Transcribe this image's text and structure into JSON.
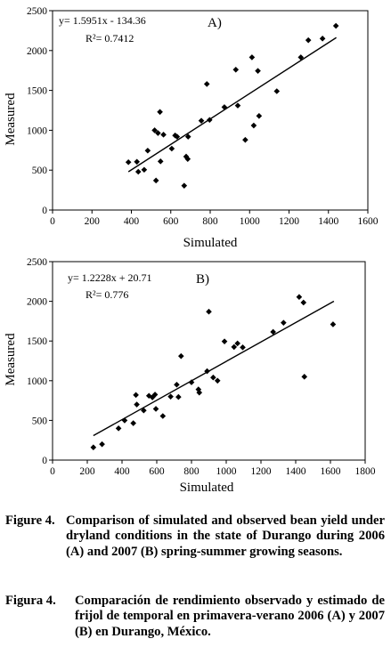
{
  "chart_data": [
    {
      "type": "scatter",
      "panel_label": "A)",
      "xlabel": "Simulated",
      "ylabel": "Measured",
      "xlim": [
        0,
        1600
      ],
      "ylim": [
        0,
        2500
      ],
      "x_ticks": [
        0,
        200,
        400,
        600,
        800,
        1000,
        1200,
        1400,
        1600
      ],
      "y_ticks": [
        0,
        500,
        1000,
        1500,
        2000,
        2500
      ],
      "x_tick_labels": [
        "0",
        "200",
        "400",
        "600",
        "800",
        "1000",
        "1200",
        "1400",
        "1600"
      ],
      "y_tick_labels": [
        "0",
        "500",
        "1000",
        "1500",
        "2000",
        "2500"
      ],
      "equation": "y= 1.5951x - 134.36",
      "r_squared": "R²= 0.7412",
      "trendline": {
        "slope": 1.5951,
        "intercept": -134.36,
        "x_range": [
          385,
          1440
        ]
      },
      "points": [
        {
          "x": 385,
          "y": 600
        },
        {
          "x": 428,
          "y": 605
        },
        {
          "x": 435,
          "y": 480
        },
        {
          "x": 465,
          "y": 505
        },
        {
          "x": 483,
          "y": 745
        },
        {
          "x": 518,
          "y": 1000
        },
        {
          "x": 525,
          "y": 370
        },
        {
          "x": 535,
          "y": 965
        },
        {
          "x": 545,
          "y": 1230
        },
        {
          "x": 548,
          "y": 610
        },
        {
          "x": 563,
          "y": 945
        },
        {
          "x": 605,
          "y": 770
        },
        {
          "x": 622,
          "y": 935
        },
        {
          "x": 632,
          "y": 920
        },
        {
          "x": 668,
          "y": 305
        },
        {
          "x": 678,
          "y": 670
        },
        {
          "x": 686,
          "y": 640
        },
        {
          "x": 688,
          "y": 920
        },
        {
          "x": 755,
          "y": 1120
        },
        {
          "x": 783,
          "y": 1580
        },
        {
          "x": 797,
          "y": 1130
        },
        {
          "x": 872,
          "y": 1290
        },
        {
          "x": 930,
          "y": 1760
        },
        {
          "x": 940,
          "y": 1310
        },
        {
          "x": 978,
          "y": 880
        },
        {
          "x": 1012,
          "y": 1915
        },
        {
          "x": 1021,
          "y": 1060
        },
        {
          "x": 1042,
          "y": 1745
        },
        {
          "x": 1048,
          "y": 1180
        },
        {
          "x": 1138,
          "y": 1490
        },
        {
          "x": 1260,
          "y": 1915
        },
        {
          "x": 1298,
          "y": 2130
        },
        {
          "x": 1370,
          "y": 2150
        },
        {
          "x": 1438,
          "y": 2310
        }
      ]
    },
    {
      "type": "scatter",
      "panel_label": "B)",
      "xlabel": "Simulated",
      "ylabel": "Measured",
      "xlim": [
        0,
        1800
      ],
      "ylim": [
        0,
        2500
      ],
      "x_ticks": [
        0,
        200,
        400,
        600,
        800,
        1000,
        1200,
        1400,
        1600,
        1800
      ],
      "y_ticks": [
        0,
        500,
        1000,
        1500,
        2000,
        2500
      ],
      "x_tick_labels": [
        "0",
        "200",
        "400",
        "600",
        "800",
        "1000",
        "1200",
        "1400",
        "1600",
        "1800"
      ],
      "y_tick_labels": [
        "0",
        "500",
        "1000",
        "1500",
        "2000",
        "2500"
      ],
      "equation": "y= 1.2228x + 20.71",
      "r_squared": "R²= 0.776",
      "trendline": {
        "slope": 1.2228,
        "intercept": 20.71,
        "x_range": [
          235,
          1620
        ]
      },
      "points": [
        {
          "x": 235,
          "y": 160
        },
        {
          "x": 285,
          "y": 200
        },
        {
          "x": 380,
          "y": 400
        },
        {
          "x": 415,
          "y": 500
        },
        {
          "x": 465,
          "y": 465
        },
        {
          "x": 480,
          "y": 820
        },
        {
          "x": 485,
          "y": 700
        },
        {
          "x": 525,
          "y": 625
        },
        {
          "x": 555,
          "y": 810
        },
        {
          "x": 575,
          "y": 790
        },
        {
          "x": 590,
          "y": 825
        },
        {
          "x": 595,
          "y": 645
        },
        {
          "x": 635,
          "y": 555
        },
        {
          "x": 680,
          "y": 800
        },
        {
          "x": 715,
          "y": 950
        },
        {
          "x": 725,
          "y": 795
        },
        {
          "x": 740,
          "y": 1310
        },
        {
          "x": 800,
          "y": 980
        },
        {
          "x": 840,
          "y": 890
        },
        {
          "x": 845,
          "y": 850
        },
        {
          "x": 890,
          "y": 1120
        },
        {
          "x": 900,
          "y": 1870
        },
        {
          "x": 925,
          "y": 1040
        },
        {
          "x": 950,
          "y": 1000
        },
        {
          "x": 990,
          "y": 1495
        },
        {
          "x": 1045,
          "y": 1425
        },
        {
          "x": 1065,
          "y": 1470
        },
        {
          "x": 1095,
          "y": 1420
        },
        {
          "x": 1270,
          "y": 1615
        },
        {
          "x": 1330,
          "y": 1730
        },
        {
          "x": 1420,
          "y": 2055
        },
        {
          "x": 1445,
          "y": 1985
        },
        {
          "x": 1450,
          "y": 1050
        },
        {
          "x": 1615,
          "y": 1710
        }
      ]
    }
  ],
  "captions": {
    "english": {
      "label": "Figure 4.",
      "text": "Comparison of simulated and observed bean yield under dryland conditions in the state of Durango during 2006 (A) and 2007 (B) spring-summer growing seasons."
    },
    "spanish": {
      "label": "Figura 4.",
      "text": "Comparación de rendimiento observado y estimado de frijol de temporal en primavera-verano 2006 (A) y 2007 (B) en Durango, México."
    }
  }
}
